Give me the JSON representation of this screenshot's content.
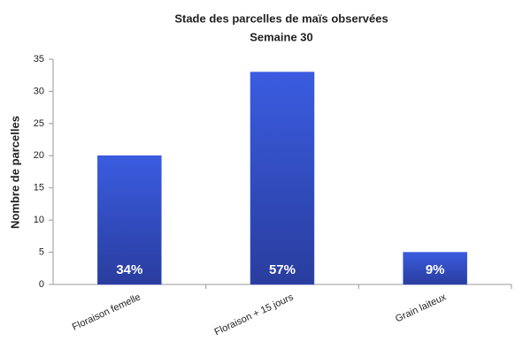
{
  "chart_data": {
    "type": "bar",
    "title": "Stade des parcelles de maïs observées",
    "subtitle": "Semaine 30",
    "y_label": "Nombre de parcelles",
    "categories": [
      "Floraison femelle",
      "Floraison + 15 jours",
      "Grain laiteux"
    ],
    "values": [
      20,
      33,
      5
    ],
    "share_labels": [
      "34%",
      "57%",
      "9%"
    ],
    "color": "#3352d2",
    "ylim": [
      0,
      35
    ],
    "yticks": [
      0,
      5,
      10,
      15,
      20,
      25,
      30,
      35
    ],
    "grid": false
  }
}
